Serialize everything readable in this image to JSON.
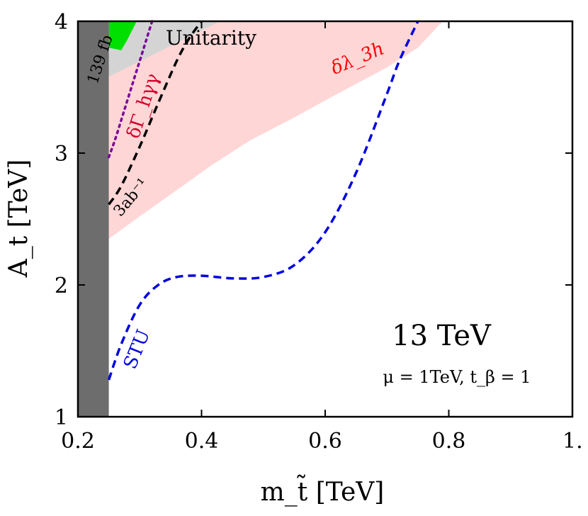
{
  "chart_data": {
    "type": "area",
    "xlabel": "m_t̃ [TeV]",
    "ylabel": "A_t [TeV]",
    "xlim": [
      0.2,
      1.0
    ],
    "ylim": [
      1,
      4
    ],
    "x_ticks": [
      "0.2",
      "0.4",
      "0.6",
      "0.8",
      "1."
    ],
    "y_ticks": [
      "1",
      "2",
      "3",
      "4"
    ],
    "tick_values_x": [
      0.2,
      0.4,
      0.6,
      0.8,
      1.0
    ],
    "tick_values_y": [
      1,
      2,
      3,
      4
    ],
    "grid": false,
    "legend": "none",
    "annotations": {
      "energy": "13 TeV",
      "params": "μ = 1TeV, t_β = 1",
      "unitarity": "Unitarity",
      "lumi_139": "139 fb",
      "lumi_3ab": "3ab⁻¹",
      "delta_gamma": "δΓ_hγγ",
      "delta_lambda": "δλ_3h",
      "stu": "STU"
    },
    "colors": {
      "excluded_dark": "#6d6d6d",
      "unitarity_region": "#d4d4d4",
      "green_region": "#00e000",
      "lambda_region": "#ffd6d6",
      "stu": "#0000e0",
      "hgg": "#7a0a9a",
      "lumi_3ab_line": "#000000",
      "delta_gamma_label": "#d0002a",
      "delta_lambda_label": "#ff0000"
    },
    "series": [
      {
        "name": "139 fb",
        "kind": "filled-region",
        "x": [
          0.2,
          0.25,
          0.25,
          0.2
        ],
        "y": [
          1.0,
          1.0,
          4.0,
          4.0
        ]
      },
      {
        "name": "Unitarity",
        "kind": "filled-region",
        "x": [
          0.25,
          0.25,
          0.28,
          0.32,
          0.36,
          0.4,
          0.43,
          0.25
        ],
        "y": [
          3.58,
          4.0,
          4.0,
          4.0,
          4.0,
          4.0,
          4.0,
          3.58
        ]
      },
      {
        "name": "",
        "kind": "filled-region",
        "x": [
          0.25,
          0.295,
          0.28,
          0.27,
          0.25
        ],
        "y": [
          4.0,
          4.0,
          3.86,
          3.78,
          3.8
        ]
      },
      {
        "name": "δλ_3h",
        "kind": "filled-region",
        "x": [
          0.25,
          0.25,
          0.79,
          0.75,
          0.7,
          0.62,
          0.55,
          0.48,
          0.42,
          0.36,
          0.3,
          0.25
        ],
        "y": [
          2.35,
          4.0,
          4.0,
          3.8,
          3.65,
          3.45,
          3.27,
          3.1,
          2.92,
          2.72,
          2.52,
          2.35
        ]
      },
      {
        "name": "δΓ_hγγ",
        "kind": "dotted-line",
        "x": [
          0.25,
          0.26,
          0.27,
          0.28,
          0.29,
          0.3,
          0.31,
          0.32
        ],
        "y": [
          2.97,
          3.1,
          3.25,
          3.4,
          3.55,
          3.7,
          3.85,
          4.0
        ]
      },
      {
        "name": "3ab⁻¹",
        "kind": "dashed-line",
        "x": [
          0.25,
          0.27,
          0.3,
          0.33,
          0.36,
          0.38,
          0.4
        ],
        "y": [
          2.61,
          2.75,
          3.05,
          3.38,
          3.7,
          3.87,
          4.0
        ]
      },
      {
        "name": "STU",
        "kind": "dashed-line",
        "x": [
          0.25,
          0.27,
          0.3,
          0.33,
          0.36,
          0.4,
          0.45,
          0.5,
          0.55,
          0.6,
          0.65,
          0.7,
          0.72,
          0.75
        ],
        "y": [
          1.28,
          1.55,
          1.85,
          2.0,
          2.06,
          2.07,
          2.05,
          2.06,
          2.15,
          2.4,
          2.85,
          3.45,
          3.7,
          4.0
        ]
      }
    ]
  }
}
